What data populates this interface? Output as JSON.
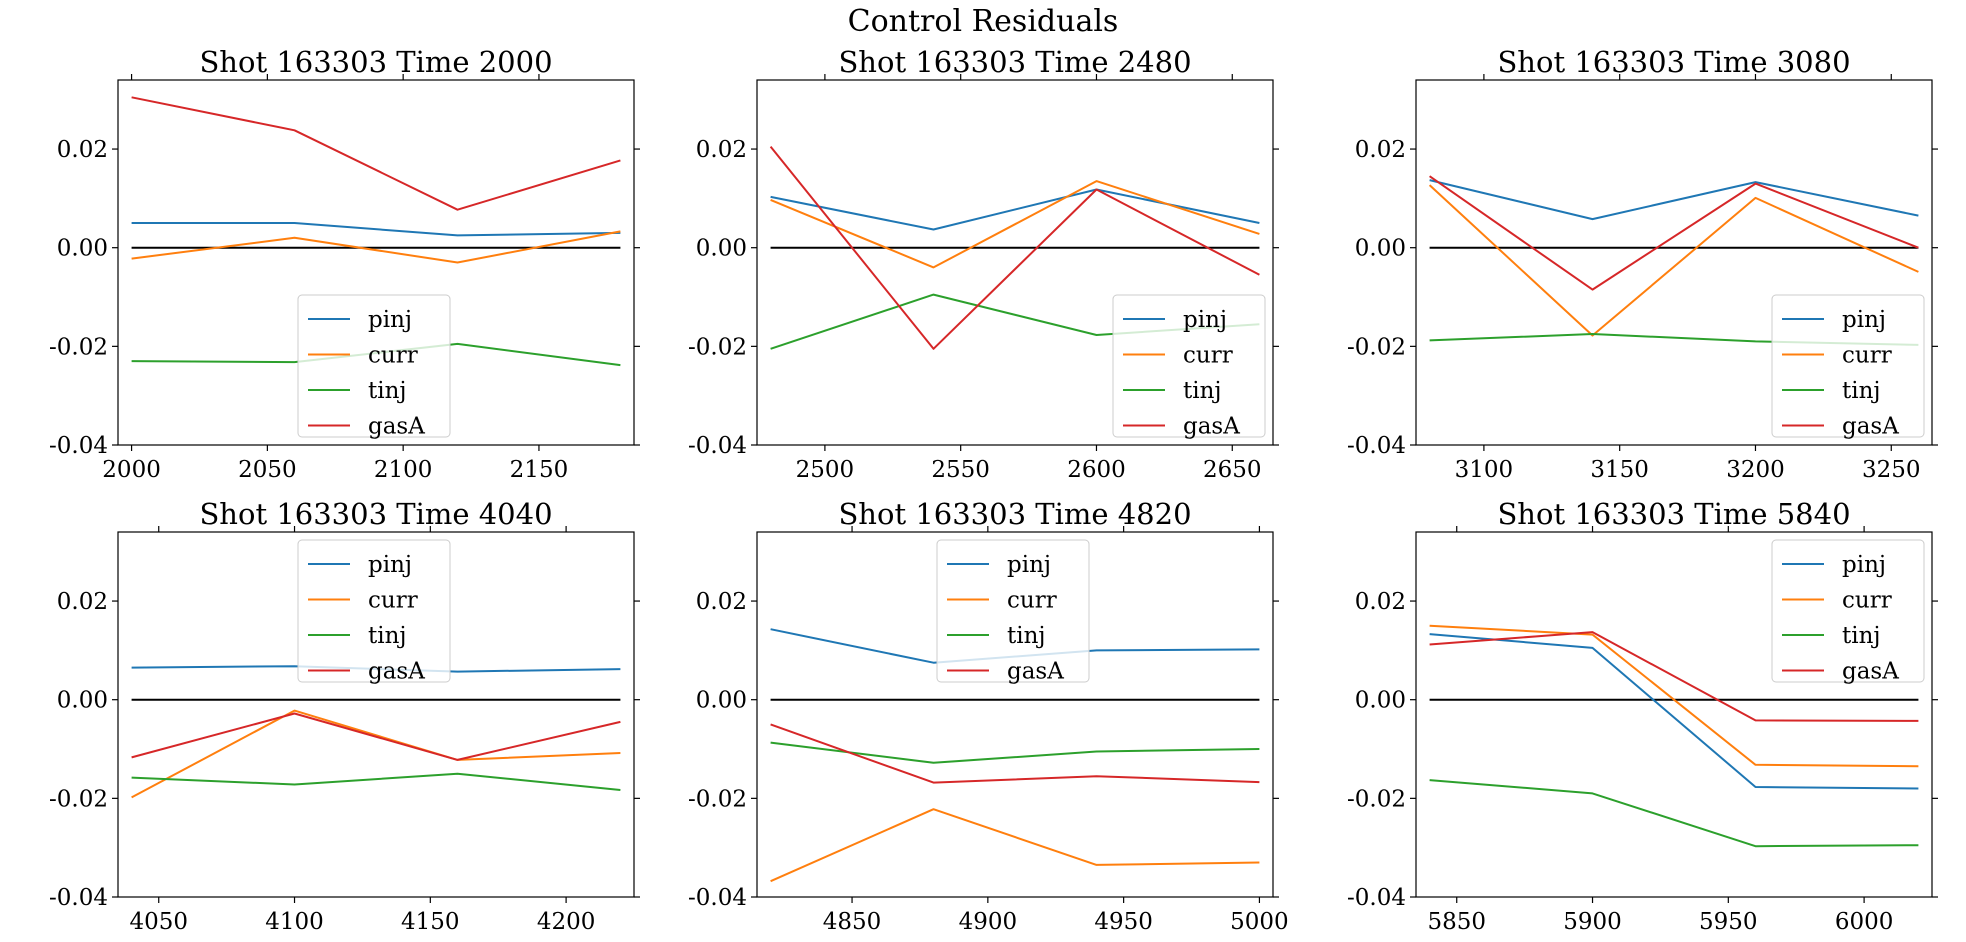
{
  "figure": {
    "title": "Control Residuals"
  },
  "legend_labels": [
    "pinj",
    "curr",
    "tinj",
    "gasA"
  ],
  "colors": {
    "pinj": "#1f77b4",
    "curr": "#ff7f0e",
    "tinj": "#2ca02c",
    "gasA": "#d62728",
    "zero_line": "#000000"
  },
  "chart_data": [
    {
      "type": "line",
      "title": "Shot 163303   Time 2000",
      "x": [
        2000,
        2060,
        2120,
        2180
      ],
      "xlim": [
        1995,
        2185
      ],
      "xticks": [
        2000,
        2050,
        2100,
        2150
      ],
      "ylim": [
        -0.04,
        0.034
      ],
      "yticks": [
        "0.02",
        "0.00",
        "-0.02",
        "-0.04"
      ],
      "legend_position": "lower center",
      "series": [
        {
          "name": "pinj",
          "values": [
            0.005,
            0.005,
            0.0025,
            0.003
          ]
        },
        {
          "name": "curr",
          "values": [
            -0.0022,
            0.002,
            -0.003,
            0.0033
          ]
        },
        {
          "name": "tinj",
          "values": [
            -0.023,
            -0.0232,
            -0.0195,
            -0.0238
          ]
        },
        {
          "name": "gasA",
          "values": [
            0.0305,
            0.0238,
            0.0077,
            0.0177
          ]
        }
      ]
    },
    {
      "type": "line",
      "title": "Shot 163303   Time 2480",
      "x": [
        2480,
        2540,
        2600,
        2660
      ],
      "xlim": [
        2475,
        2665
      ],
      "xticks": [
        2500,
        2550,
        2600,
        2650
      ],
      "ylim": [
        -0.04,
        0.034
      ],
      "yticks": [
        "0.02",
        "0.00",
        "-0.02",
        "-0.04"
      ],
      "legend_position": "lower right",
      "series": [
        {
          "name": "pinj",
          "values": [
            0.0103,
            0.0037,
            0.0118,
            0.005
          ]
        },
        {
          "name": "curr",
          "values": [
            0.0097,
            -0.004,
            0.0135,
            0.0028
          ]
        },
        {
          "name": "tinj",
          "values": [
            -0.0205,
            -0.0095,
            -0.0177,
            -0.0155
          ]
        },
        {
          "name": "gasA",
          "values": [
            0.0205,
            -0.0205,
            0.0118,
            -0.0055
          ]
        }
      ]
    },
    {
      "type": "line",
      "title": "Shot 163303   Time 3080",
      "x": [
        3080,
        3140,
        3200,
        3260
      ],
      "xlim": [
        3075,
        3265
      ],
      "xticks": [
        3100,
        3150,
        3200,
        3250
      ],
      "ylim": [
        -0.04,
        0.034
      ],
      "yticks": [
        "0.02",
        "0.00",
        "-0.02",
        "-0.04"
      ],
      "legend_position": "lower right",
      "series": [
        {
          "name": "pinj",
          "values": [
            0.0137,
            0.0058,
            0.0133,
            0.0065
          ]
        },
        {
          "name": "curr",
          "values": [
            0.0127,
            -0.0178,
            0.0101,
            -0.0049
          ]
        },
        {
          "name": "tinj",
          "values": [
            -0.0188,
            -0.0175,
            -0.019,
            -0.0197
          ]
        },
        {
          "name": "gasA",
          "values": [
            0.0145,
            -0.0085,
            0.013,
            0.0
          ]
        }
      ]
    },
    {
      "type": "line",
      "title": "Shot 163303   Time 4040",
      "x": [
        4040,
        4100,
        4160,
        4220
      ],
      "xlim": [
        4035,
        4225
      ],
      "xticks": [
        4050,
        4100,
        4150,
        4200
      ],
      "ylim": [
        -0.04,
        0.034
      ],
      "yticks": [
        "0.02",
        "0.00",
        "-0.02",
        "-0.04"
      ],
      "legend_position": "upper center",
      "series": [
        {
          "name": "pinj",
          "values": [
            0.0065,
            0.0068,
            0.0057,
            0.0062
          ]
        },
        {
          "name": "curr",
          "values": [
            -0.0198,
            -0.0022,
            -0.0122,
            -0.0108
          ]
        },
        {
          "name": "tinj",
          "values": [
            -0.0158,
            -0.0172,
            -0.015,
            -0.0183
          ]
        },
        {
          "name": "gasA",
          "values": [
            -0.0117,
            -0.0028,
            -0.0122,
            -0.0045
          ]
        }
      ]
    },
    {
      "type": "line",
      "title": "Shot 163303   Time 4820",
      "x": [
        4820,
        4880,
        4940,
        5000
      ],
      "xlim": [
        4815,
        5005
      ],
      "xticks": [
        4850,
        4900,
        4950,
        5000
      ],
      "ylim": [
        -0.04,
        0.034
      ],
      "yticks": [
        "0.02",
        "0.00",
        "-0.02",
        "-0.04"
      ],
      "legend_position": "upper center",
      "series": [
        {
          "name": "pinj",
          "values": [
            0.0143,
            0.0075,
            0.01,
            0.0102
          ]
        },
        {
          "name": "curr",
          "values": [
            -0.0368,
            -0.0222,
            -0.0335,
            -0.033
          ]
        },
        {
          "name": "tinj",
          "values": [
            -0.0087,
            -0.0128,
            -0.0105,
            -0.01
          ]
        },
        {
          "name": "gasA",
          "values": [
            -0.005,
            -0.0168,
            -0.0155,
            -0.0167
          ]
        }
      ]
    },
    {
      "type": "line",
      "title": "Shot 163303   Time 5840",
      "x": [
        5840,
        5900,
        5960,
        6020
      ],
      "xlim": [
        5835,
        6025
      ],
      "xticks": [
        5850,
        5900,
        5950,
        6000
      ],
      "ylim": [
        -0.04,
        0.034
      ],
      "yticks": [
        "0.02",
        "0.00",
        "-0.02",
        "-0.04"
      ],
      "legend_position": "upper right",
      "series": [
        {
          "name": "pinj",
          "values": [
            0.0133,
            0.0105,
            -0.0177,
            -0.018
          ]
        },
        {
          "name": "curr",
          "values": [
            0.015,
            0.0132,
            -0.0132,
            -0.0135
          ]
        },
        {
          "name": "tinj",
          "values": [
            -0.0163,
            -0.019,
            -0.0297,
            -0.0295
          ]
        },
        {
          "name": "gasA",
          "values": [
            0.0112,
            0.0137,
            -0.0042,
            -0.0043
          ]
        }
      ]
    }
  ]
}
